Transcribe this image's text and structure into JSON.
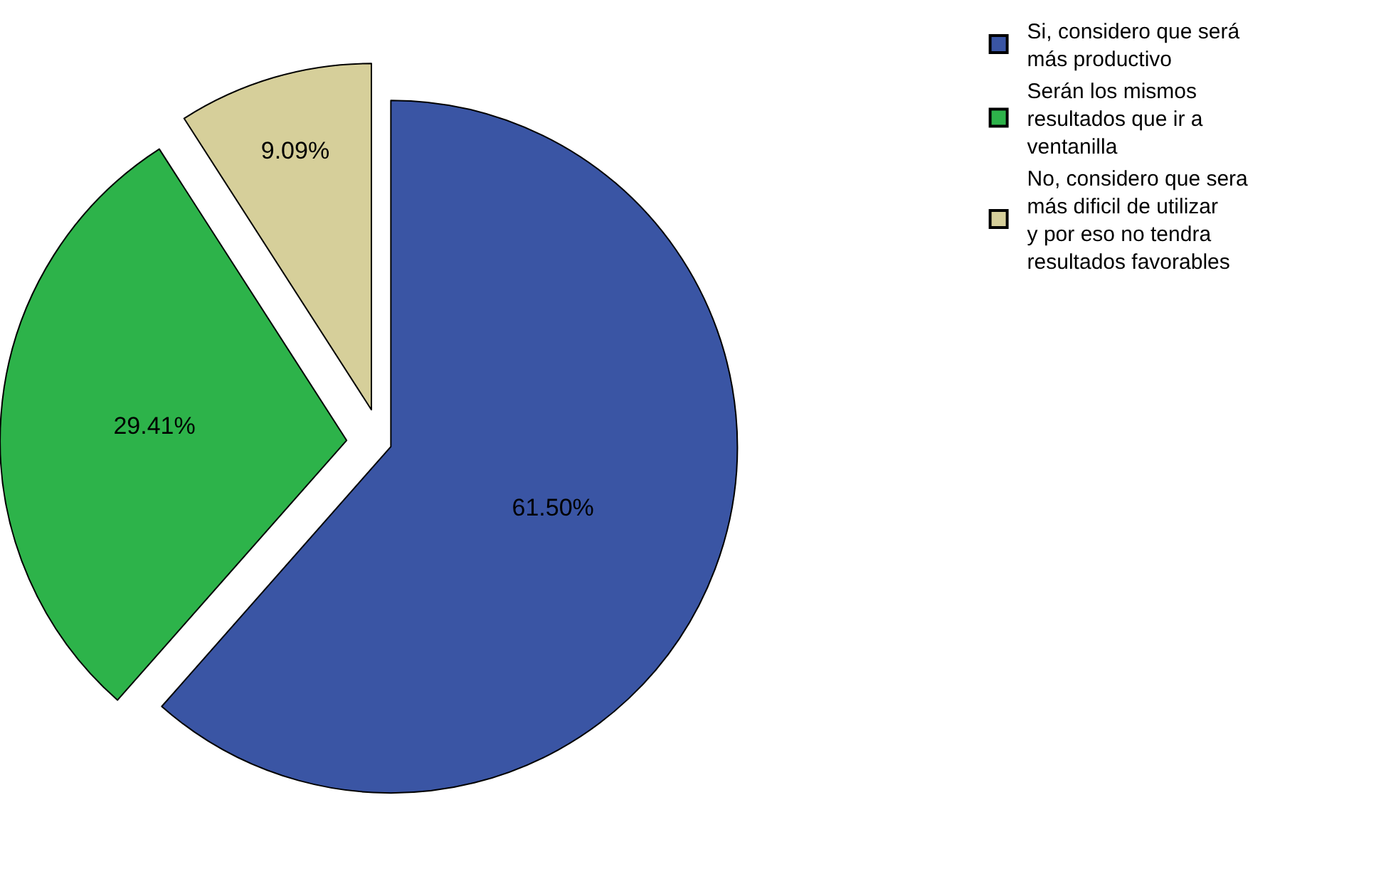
{
  "chart_data": {
    "type": "pie",
    "categories": [
      "Si, considero que será más productivo",
      "Serán los mismos resultados que ir a ventanilla",
      "No, considero que sera más dificil de utilizar y por eso no tendra resultados favorables"
    ],
    "values": [
      61.5,
      29.41,
      9.09
    ],
    "value_labels": [
      "61.50%",
      "29.41%",
      "9.09%"
    ],
    "colors": [
      "#3a55a4",
      "#2db34a",
      "#d6cf9a"
    ],
    "legend": "top right"
  }
}
